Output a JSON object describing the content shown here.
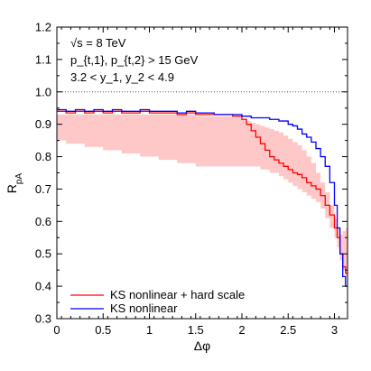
{
  "chart_data": {
    "type": "line",
    "xlabel": "Δφ",
    "ylabel": "R_pA",
    "xlim": [
      0,
      3.14159
    ],
    "ylim": [
      0.3,
      1.2
    ],
    "x_ticks": [
      0,
      0.5,
      1,
      1.5,
      2,
      2.5,
      3
    ],
    "y_ticks": [
      0.3,
      0.4,
      0.5,
      0.6,
      0.7,
      0.8,
      0.9,
      1.0,
      1.1,
      1.2
    ],
    "reference_line": 1.0,
    "annotations": [
      "√s = 8 TeV",
      "p_{t,1}, p_{t,2} > 15 GeV",
      "3.2 < y_1, y_2 < 4.9"
    ],
    "legend_position": "bottom-left",
    "series": [
      {
        "name": "KS nonlinear + hard scale",
        "color": "#ff0000",
        "style": "step",
        "x": [
          0.0,
          0.1,
          0.2,
          0.3,
          0.4,
          0.5,
          0.6,
          0.7,
          0.8,
          0.9,
          1.0,
          1.1,
          1.2,
          1.3,
          1.4,
          1.5,
          1.6,
          1.7,
          1.8,
          1.9,
          2.0,
          2.05,
          2.1,
          2.15,
          2.2,
          2.25,
          2.3,
          2.35,
          2.4,
          2.45,
          2.5,
          2.55,
          2.6,
          2.65,
          2.7,
          2.75,
          2.8,
          2.85,
          2.9,
          2.95,
          3.0,
          3.03,
          3.06,
          3.09,
          3.12
        ],
        "values": [
          0.94,
          0.935,
          0.94,
          0.935,
          0.94,
          0.935,
          0.94,
          0.935,
          0.935,
          0.94,
          0.935,
          0.935,
          0.935,
          0.93,
          0.935,
          0.93,
          0.93,
          0.93,
          0.93,
          0.925,
          0.915,
          0.9,
          0.88,
          0.86,
          0.84,
          0.82,
          0.8,
          0.79,
          0.78,
          0.77,
          0.76,
          0.75,
          0.745,
          0.735,
          0.72,
          0.71,
          0.7,
          0.68,
          0.65,
          0.62,
          0.58,
          0.55,
          0.5,
          0.46,
          0.44
        ],
        "band_low": [
          0.85,
          0.84,
          0.84,
          0.83,
          0.83,
          0.82,
          0.82,
          0.81,
          0.81,
          0.8,
          0.8,
          0.79,
          0.79,
          0.78,
          0.78,
          0.77,
          0.77,
          0.77,
          0.77,
          0.77,
          0.77,
          0.77,
          0.77,
          0.77,
          0.76,
          0.76,
          0.75,
          0.75,
          0.74,
          0.73,
          0.72,
          0.71,
          0.7,
          0.69,
          0.68,
          0.67,
          0.66,
          0.64,
          0.61,
          0.58,
          0.55,
          0.52,
          0.48,
          0.45,
          0.43
        ],
        "band_high": [
          0.93,
          0.93,
          0.93,
          0.93,
          0.93,
          0.93,
          0.93,
          0.93,
          0.93,
          0.93,
          0.93,
          0.93,
          0.93,
          0.93,
          0.93,
          0.925,
          0.925,
          0.925,
          0.925,
          0.92,
          0.915,
          0.91,
          0.905,
          0.9,
          0.895,
          0.89,
          0.885,
          0.88,
          0.875,
          0.865,
          0.855,
          0.845,
          0.835,
          0.82,
          0.8,
          0.78,
          0.75,
          0.72,
          0.69,
          0.65,
          0.61,
          0.58,
          0.56,
          0.57,
          0.58
        ]
      },
      {
        "name": "KS nonlinear",
        "color": "#0000ff",
        "style": "step",
        "x": [
          0.0,
          0.1,
          0.2,
          0.3,
          0.4,
          0.5,
          0.6,
          0.7,
          0.8,
          0.9,
          1.0,
          1.1,
          1.2,
          1.3,
          1.4,
          1.5,
          1.6,
          1.7,
          1.8,
          1.9,
          2.0,
          2.1,
          2.2,
          2.3,
          2.4,
          2.5,
          2.55,
          2.6,
          2.65,
          2.7,
          2.75,
          2.8,
          2.85,
          2.9,
          2.95,
          3.0,
          3.03,
          3.06,
          3.09,
          3.12
        ],
        "values": [
          0.945,
          0.94,
          0.945,
          0.94,
          0.945,
          0.94,
          0.945,
          0.94,
          0.94,
          0.945,
          0.94,
          0.94,
          0.94,
          0.935,
          0.94,
          0.935,
          0.935,
          0.93,
          0.93,
          0.93,
          0.925,
          0.92,
          0.92,
          0.915,
          0.91,
          0.9,
          0.895,
          0.885,
          0.87,
          0.86,
          0.845,
          0.825,
          0.8,
          0.77,
          0.72,
          0.65,
          0.58,
          0.5,
          0.43,
          0.4
        ]
      }
    ]
  }
}
